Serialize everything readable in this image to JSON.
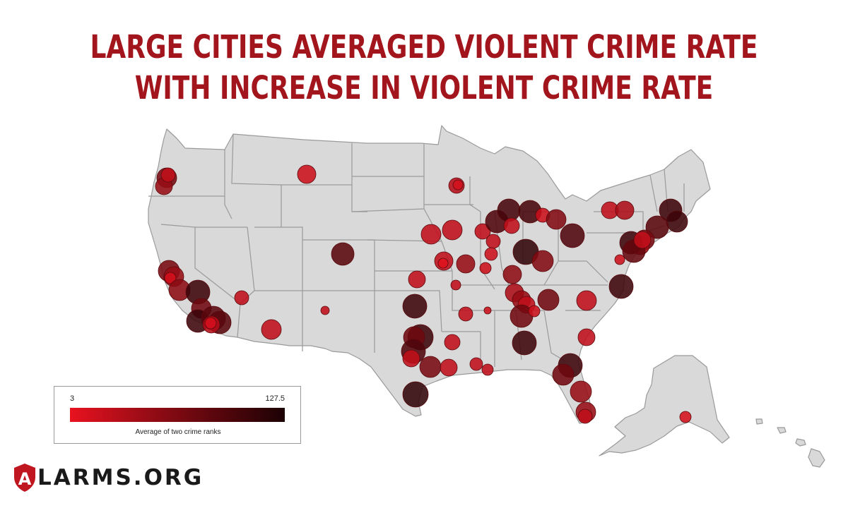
{
  "title": {
    "line1": "LARGE CITIES AVERAGED VIOLENT CRIME RATE",
    "line2": "WITH INCREASE IN VIOLENT CRIME RATE"
  },
  "legend": {
    "min_label": "3",
    "max_label": "127.5",
    "caption": "Average of two crime ranks",
    "min_value": 3,
    "max_value": 127.5,
    "color_low": "#e8121f",
    "color_high": "#1c0205"
  },
  "logo": {
    "letter": "A",
    "text": "LARMS.ORG",
    "shield_color": "#c0161f"
  },
  "map_colors": {
    "land": "#d9d9d9",
    "border": "#9a9a9a"
  }
}
